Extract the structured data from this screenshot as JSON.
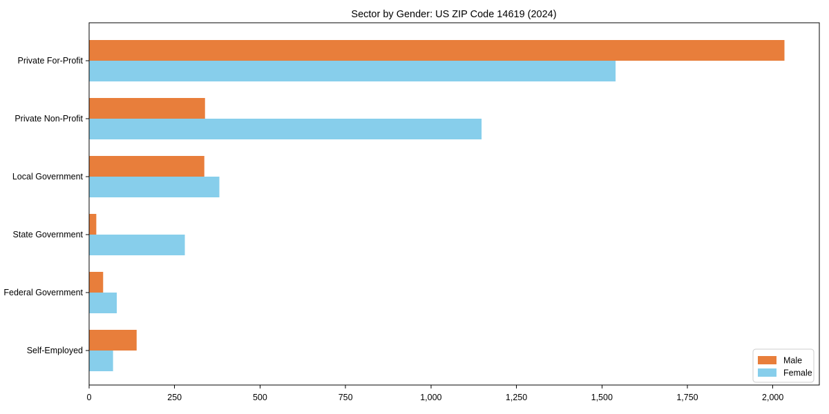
{
  "chart_data": {
    "type": "bar",
    "orientation": "horizontal",
    "title": "Sector by Gender: US ZIP Code 14619 (2024)",
    "categories": [
      "Private For-Profit",
      "Private Non-Profit",
      "Local Government",
      "State Government",
      "Federal Government",
      "Self-Employed"
    ],
    "series": [
      {
        "name": "Male",
        "color": "#e87e3b",
        "values": [
          2034,
          339,
          337,
          21,
          41,
          139
        ]
      },
      {
        "name": "Female",
        "color": "#87ceeb",
        "values": [
          1540,
          1148,
          381,
          280,
          81,
          70
        ]
      }
    ],
    "xlim": [
      0,
      2136
    ],
    "x_ticks": [
      0,
      250,
      500,
      750,
      1000,
      1250,
      1500,
      1750,
      2000
    ],
    "x_tick_labels": [
      "0",
      "250",
      "500",
      "750",
      "1,000",
      "1,250",
      "1,500",
      "1,750",
      "2,000"
    ],
    "legend": {
      "position": "lower-right",
      "entries": [
        "Male",
        "Female"
      ],
      "border_color": "#cccccc"
    },
    "grid": false,
    "background_color": "#ffffff",
    "axis_color": "#000000",
    "text_color": "#000000"
  }
}
